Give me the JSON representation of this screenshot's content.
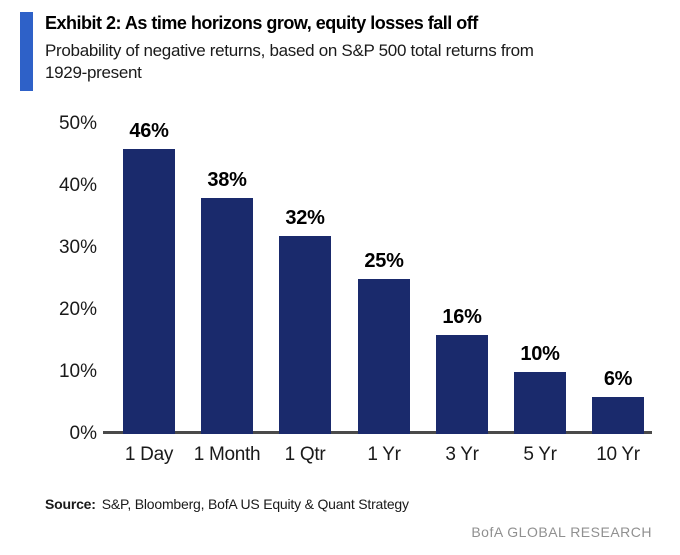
{
  "header": {
    "exhibit_title": "Exhibit 2: As time horizons grow, equity losses fall off",
    "subtitle_line_1": "Probability of negative returns, based on S&P 500 total returns from",
    "subtitle_line_2": "1929-present"
  },
  "chart_data": {
    "type": "bar",
    "title": "Exhibit 2: As time horizons grow, equity losses fall off",
    "subtitle": "Probability of negative returns, based on S&P 500 total returns from 1929-present",
    "categories": [
      "1 Day",
      "1 Month",
      "1 Qtr",
      "1 Yr",
      "3 Yr",
      "5 Yr",
      "10 Yr"
    ],
    "values": [
      46,
      38,
      32,
      25,
      16,
      10,
      6
    ],
    "value_labels": [
      "46%",
      "38%",
      "32%",
      "25%",
      "16%",
      "10%",
      "6%"
    ],
    "yticks": [
      0,
      10,
      20,
      30,
      40,
      50
    ],
    "ytick_labels": [
      "0%",
      "10%",
      "20%",
      "30%",
      "40%",
      "50%"
    ],
    "ylim": [
      0,
      50
    ],
    "xlabel": "",
    "ylabel": "",
    "grid": false,
    "legend": false,
    "bar_color": "#1a2a6c"
  },
  "footer": {
    "source_label": "Source:",
    "source_text": "S&P, Bloomberg, BofA US Equity & Quant Strategy",
    "brand": "BofA GLOBAL RESEARCH"
  },
  "colors": {
    "accent_bar": "#2e61c8",
    "bar": "#1a2a6c",
    "axis_line": "#4a4a4a",
    "brand_gray": "#909090"
  }
}
